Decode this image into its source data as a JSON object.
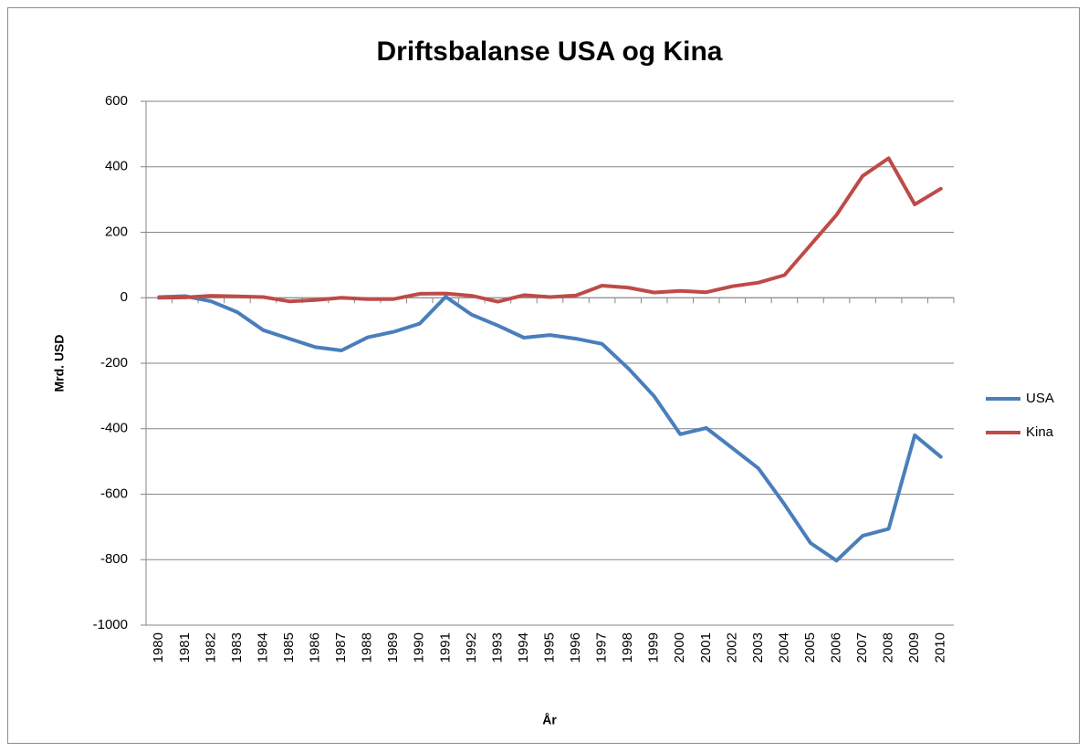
{
  "chart_data": {
    "type": "line",
    "title": "Driftsbalanse USA og Kina",
    "x_label": "År",
    "y_label": "Mrd. USD",
    "categories": [
      "1980",
      "1981",
      "1982",
      "1983",
      "1984",
      "1985",
      "1986",
      "1987",
      "1988",
      "1989",
      "1990",
      "1991",
      "1992",
      "1993",
      "1994",
      "1995",
      "1996",
      "1997",
      "1998",
      "1999",
      "2000",
      "2001",
      "2002",
      "2003",
      "2004",
      "2005",
      "2006",
      "2007",
      "2008",
      "2009",
      "2010"
    ],
    "series": [
      {
        "name": "USA",
        "color": "#4a7ebb",
        "values": [
          2,
          5,
          -11,
          -44,
          -99,
          -125,
          -151,
          -161,
          -121,
          -104,
          -79,
          3,
          -52,
          -85,
          -122,
          -114,
          -125,
          -141,
          -215,
          -301,
          -417,
          -398,
          -459,
          -521,
          -631,
          -749,
          -803,
          -727,
          -706,
          -420,
          -486
        ]
      },
      {
        "name": "Kina",
        "color": "#be4b48",
        "values": [
          0,
          1,
          6,
          4,
          2,
          -11,
          -7,
          0,
          -4,
          -4,
          12,
          13,
          6,
          -12,
          8,
          2,
          7,
          37,
          31,
          16,
          21,
          17,
          35,
          46,
          69,
          161,
          253,
          372,
          426,
          285,
          333
        ]
      }
    ],
    "ylim": [
      -1000,
      600
    ],
    "yticks": [
      -1000,
      -800,
      -600,
      -400,
      -200,
      0,
      200,
      400,
      600
    ],
    "grid": true,
    "legend": "right"
  }
}
